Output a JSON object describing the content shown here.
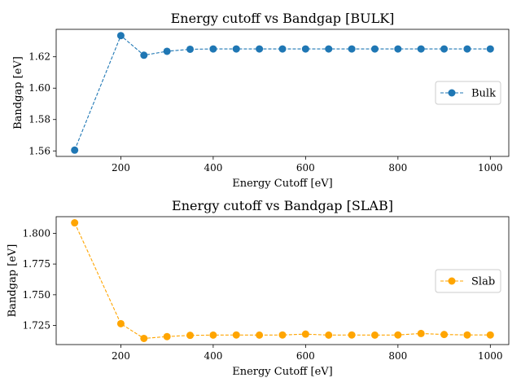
{
  "chart_data": [
    {
      "type": "line",
      "title": "Energy cutoff vs Bandgap [BULK]",
      "xlabel": "Energy Cutoff [eV]",
      "ylabel": "Bandgap [eV]",
      "xlim": [
        60,
        1040
      ],
      "ylim": [
        1.5565,
        1.6375
      ],
      "xticks": [
        200,
        400,
        600,
        800,
        1000
      ],
      "yticks": [
        1.56,
        1.58,
        1.6,
        1.62
      ],
      "ytick_labels": [
        "1.56",
        "1.58",
        "1.60",
        "1.62"
      ],
      "grid": false,
      "legend": "center-right",
      "series": [
        {
          "name": "Bulk",
          "color": "#1f77b4",
          "linestyle": "dashed",
          "marker": "circle",
          "x": [
            100,
            200,
            250,
            300,
            350,
            400,
            450,
            500,
            550,
            600,
            650,
            700,
            750,
            800,
            850,
            900,
            950,
            1000
          ],
          "y": [
            1.5605,
            1.6335,
            1.621,
            1.6235,
            1.6248,
            1.625,
            1.625,
            1.625,
            1.625,
            1.625,
            1.625,
            1.625,
            1.625,
            1.625,
            1.625,
            1.625,
            1.625,
            1.625
          ]
        }
      ]
    },
    {
      "type": "line",
      "title": "Energy cutoff vs Bandgap [SLAB]",
      "xlabel": "Energy Cutoff [eV]",
      "ylabel": "Bandgap [eV]",
      "xlim": [
        60,
        1040
      ],
      "ylim": [
        1.7095,
        1.8135
      ],
      "xticks": [
        200,
        400,
        600,
        800,
        1000
      ],
      "yticks": [
        1.725,
        1.75,
        1.775,
        1.8
      ],
      "ytick_labels": [
        "1.725",
        "1.750",
        "1.775",
        "1.800"
      ],
      "grid": false,
      "legend": "center-right",
      "series": [
        {
          "name": "Slab",
          "color": "#ffa500",
          "linestyle": "dashed",
          "marker": "circle",
          "x": [
            100,
            200,
            250,
            300,
            350,
            400,
            450,
            500,
            550,
            600,
            650,
            700,
            750,
            800,
            850,
            900,
            950,
            1000
          ],
          "y": [
            1.8085,
            1.7265,
            1.7145,
            1.716,
            1.717,
            1.7172,
            1.7173,
            1.7172,
            1.7173,
            1.718,
            1.7172,
            1.7173,
            1.7172,
            1.7173,
            1.7185,
            1.7177,
            1.7173,
            1.7173
          ]
        }
      ]
    }
  ]
}
